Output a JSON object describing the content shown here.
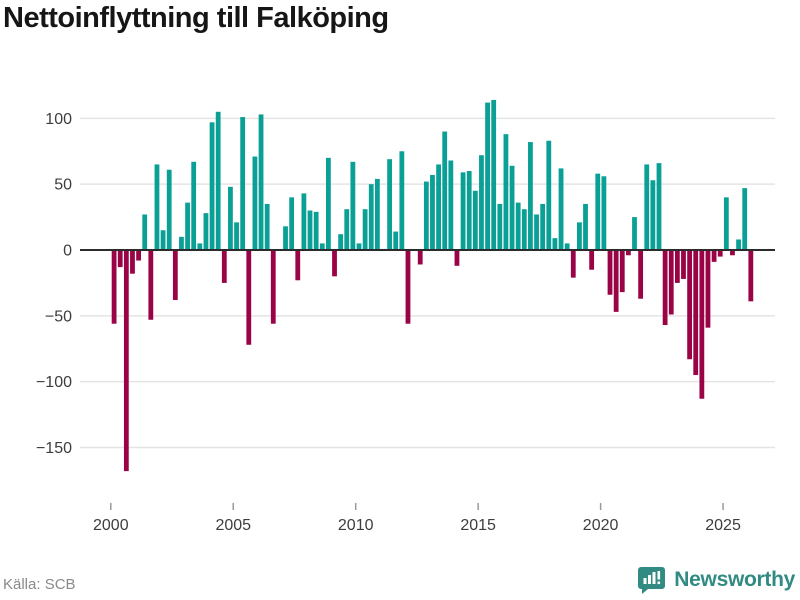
{
  "title": "Nettoinflyttning till Falköping",
  "source": "Källa: SCB",
  "brand": {
    "name": "Newsworthy",
    "icon": "bar-chart-speech-bubble-icon"
  },
  "colors": {
    "positive": "#0aa096",
    "negative": "#9a0345",
    "grid": "#e4e4e4",
    "zero_line": "#2b2b2b",
    "axis_text": "#3d3d3d",
    "tick_mark": "#999999",
    "title_text": "#161616",
    "source_text": "#8a8a8a",
    "brand_teal": "#318b82"
  },
  "chart_data": {
    "type": "bar",
    "title": "Nettoinflyttning till Falköping",
    "frequency": "quarterly",
    "x_start": "2000-Q1",
    "x_end": "2026-Q1",
    "values": [
      -56,
      -13,
      -168,
      -18,
      -8,
      27,
      -53,
      65,
      15,
      61,
      -38,
      10,
      36,
      67,
      5,
      28,
      97,
      105,
      -25,
      48,
      21,
      101,
      -72,
      71,
      103,
      35,
      -56,
      0,
      18,
      40,
      -23,
      43,
      30,
      29,
      5,
      70,
      -20,
      12,
      31,
      67,
      5,
      31,
      50,
      54,
      0,
      69,
      14,
      75,
      -56,
      0,
      -11,
      52,
      57,
      65,
      90,
      68,
      -12,
      59,
      60,
      45,
      72,
      112,
      114,
      35,
      88,
      64,
      36,
      31,
      82,
      27,
      35,
      83,
      9,
      62,
      5,
      -21,
      21,
      35,
      -15,
      58,
      56,
      -34,
      -47,
      -32,
      -4,
      25,
      -37,
      65,
      53,
      66,
      -57,
      -49,
      -25,
      -22,
      -83,
      -95,
      -113,
      -59,
      -9,
      -5,
      40,
      -4,
      8,
      47,
      -39
    ],
    "x_tick_labels": [
      "2000",
      "2005",
      "2010",
      "2015",
      "2020",
      "2025"
    ],
    "y_ticks": [
      100,
      50,
      0,
      -50,
      -100,
      -150
    ],
    "ylim": [
      -175,
      125
    ],
    "grid": true,
    "legend": "none",
    "ylabel": "",
    "xlabel": ""
  }
}
